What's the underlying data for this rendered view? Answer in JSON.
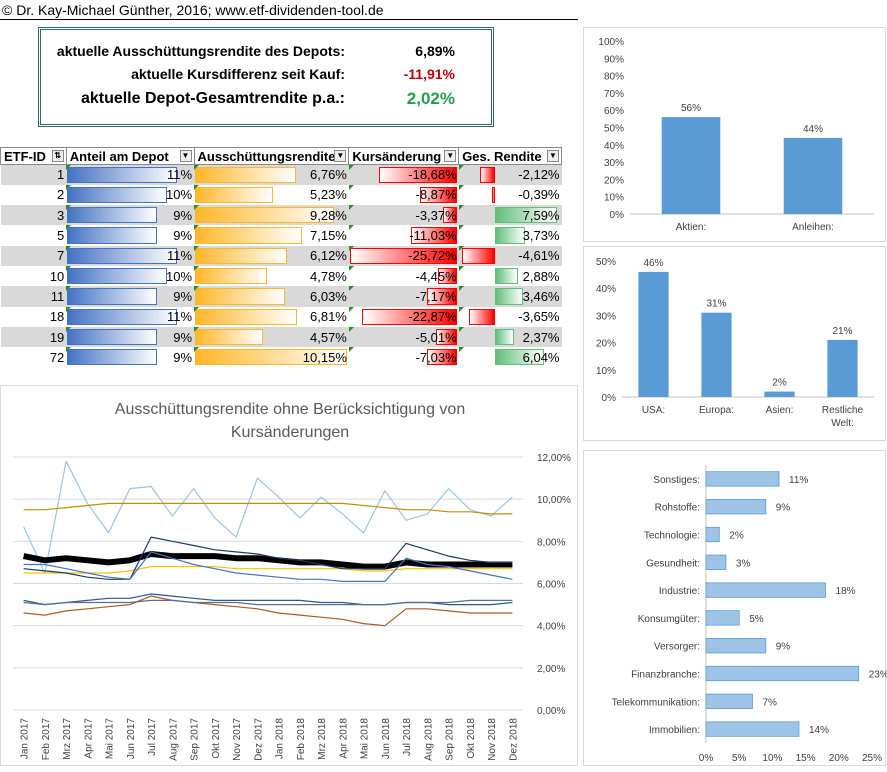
{
  "copyright": "© Dr. Kay-Michael Günther, 2016; www.etf-dividenden-tool.de",
  "kpis": {
    "yield_label": "aktuelle Ausschüttungsrendite des Depots:",
    "yield_value": "6,89%",
    "diff_label": "aktuelle Kursdifferenz seit Kauf:",
    "diff_value": "-11,91%",
    "total_label": "aktuelle Depot-Gesamtrendite p.a.:",
    "total_value": "2,02%",
    "colors": {
      "negative": "#c00000",
      "positive": "#21a04a"
    }
  },
  "table": {
    "headers": [
      "ETF-ID",
      "Anteil am Depot",
      "Ausschüttungsrendite",
      "Kursänderung",
      "Ges. Rendite"
    ],
    "rows": [
      {
        "id": "1",
        "share": "11%",
        "share_v": 11,
        "yield": "6,76%",
        "yield_v": 6.76,
        "change": "-18,68%",
        "change_v": -18.68,
        "total": "-2,12%",
        "total_v": -2.12
      },
      {
        "id": "2",
        "share": "10%",
        "share_v": 10,
        "yield": "5,23%",
        "yield_v": 5.23,
        "change": "-8,87%",
        "change_v": -8.87,
        "total": "-0,39%",
        "total_v": -0.39
      },
      {
        "id": "3",
        "share": "9%",
        "share_v": 9,
        "yield": "9,28%",
        "yield_v": 9.28,
        "change": "-3,37%",
        "change_v": -3.37,
        "total": "7,59%",
        "total_v": 7.59
      },
      {
        "id": "5",
        "share": "9%",
        "share_v": 9,
        "yield": "7,15%",
        "yield_v": 7.15,
        "change": "-11,03%",
        "change_v": -11.03,
        "total": "3,73%",
        "total_v": 3.73
      },
      {
        "id": "7",
        "share": "11%",
        "share_v": 11,
        "yield": "6,12%",
        "yield_v": 6.12,
        "change": "-25,72%",
        "change_v": -25.72,
        "total": "-4,61%",
        "total_v": -4.61
      },
      {
        "id": "10",
        "share": "10%",
        "share_v": 10,
        "yield": "4,78%",
        "yield_v": 4.78,
        "change": "-4,45%",
        "change_v": -4.45,
        "total": "2,88%",
        "total_v": 2.88
      },
      {
        "id": "11",
        "share": "9%",
        "share_v": 9,
        "yield": "6,03%",
        "yield_v": 6.03,
        "change": "-7,17%",
        "change_v": -7.17,
        "total": "3,46%",
        "total_v": 3.46
      },
      {
        "id": "18",
        "share": "11%",
        "share_v": 11,
        "yield": "6,81%",
        "yield_v": 6.81,
        "change": "-22,87%",
        "change_v": -22.87,
        "total": "-3,65%",
        "total_v": -3.65
      },
      {
        "id": "19",
        "share": "9%",
        "share_v": 9,
        "yield": "4,57%",
        "yield_v": 4.57,
        "change": "-5,01%",
        "change_v": -5.01,
        "total": "2,37%",
        "total_v": 2.37
      },
      {
        "id": "72",
        "share": "9%",
        "share_v": 9,
        "yield": "10,15%",
        "yield_v": 10.15,
        "change": "-7,03%",
        "change_v": -7.03,
        "total": "6,04%",
        "total_v": 6.04
      }
    ]
  },
  "chart_data": [
    {
      "type": "bar",
      "categories": [
        "Aktien:",
        "Anleihen:"
      ],
      "values": [
        56,
        44
      ],
      "labels": [
        "56%",
        "44%"
      ],
      "yticks": [
        "0%",
        "10%",
        "20%",
        "30%",
        "40%",
        "50%",
        "60%",
        "70%",
        "80%",
        "90%",
        "100%"
      ],
      "ylim": [
        0,
        100
      ],
      "color": "#5b9bd5"
    },
    {
      "type": "bar",
      "categories": [
        "USA:",
        "Europa:",
        "Asien:",
        "Restliche Welt:"
      ],
      "values": [
        46,
        31,
        2,
        21
      ],
      "labels": [
        "46%",
        "31%",
        "2%",
        "21%"
      ],
      "yticks": [
        "0%",
        "10%",
        "20%",
        "30%",
        "40%",
        "50%"
      ],
      "ylim": [
        0,
        50
      ],
      "color": "#5b9bd5"
    },
    {
      "type": "bar",
      "orientation": "horizontal",
      "categories": [
        "Sonstiges:",
        "Rohstoffe:",
        "Technologie:",
        "Gesundheit:",
        "Industrie:",
        "Konsumgüter:",
        "Versorger:",
        "Finanzbranche:",
        "Telekommunikation:",
        "Immobilien:"
      ],
      "values": [
        11,
        9,
        2,
        3,
        18,
        5,
        9,
        23,
        7,
        14
      ],
      "labels": [
        "11%",
        "9%",
        "2%",
        "3%",
        "18%",
        "5%",
        "9%",
        "23%",
        "7%",
        "14%"
      ],
      "xticks": [
        "0%",
        "5%",
        "10%",
        "15%",
        "20%",
        "25%"
      ],
      "xlim": [
        0,
        25
      ],
      "color": "#9dc3e6"
    },
    {
      "type": "line",
      "title": "Ausschüttungsrendite ohne Berücksichtigung von Kursänderungen",
      "x": [
        "Jan 2017",
        "Feb 2017",
        "Mrz 2017",
        "Apr 2017",
        "Mai 2017",
        "Jun 2017",
        "Jul 2017",
        "Aug 2017",
        "Sep 2017",
        "Okt 2017",
        "Nov 2017",
        "Dez 2017",
        "Jan 2018",
        "Feb 2018",
        "Mrz 2018",
        "Apr 2018",
        "Mai 2018",
        "Jun 2018",
        "Jul 2018",
        "Aug 2018",
        "Sep 2018",
        "Okt 2018",
        "Nov 2018",
        "Dez 2018"
      ],
      "yticks": [
        "0,00%",
        "2,00%",
        "4,00%",
        "6,00%",
        "8,00%",
        "10,00%",
        "12,00%"
      ],
      "ylim": [
        0,
        12
      ],
      "series": [
        {
          "color": "#9dc3e6",
          "width": 1.2,
          "values": [
            8.7,
            6.5,
            11.8,
            9.8,
            8.4,
            10.5,
            10.6,
            9.2,
            10.5,
            9.1,
            8.2,
            11.0,
            10.1,
            9.1,
            10.1,
            9.3,
            8.4,
            10.4,
            9.0,
            9.3,
            10.5,
            9.5,
            9.2,
            10.1
          ]
        },
        {
          "color": "#bf9000",
          "width": 1.2,
          "values": [
            9.5,
            9.5,
            9.6,
            9.7,
            9.8,
            9.8,
            9.8,
            9.8,
            9.8,
            9.8,
            9.8,
            9.8,
            9.8,
            9.8,
            9.8,
            9.8,
            9.7,
            9.6,
            9.5,
            9.5,
            9.4,
            9.4,
            9.3,
            9.3
          ]
        },
        {
          "color": "#000000",
          "width": 6,
          "values": [
            7.3,
            7.1,
            7.2,
            7.1,
            7.0,
            7.1,
            7.4,
            7.3,
            7.3,
            7.3,
            7.2,
            7.2,
            7.1,
            7.0,
            7.0,
            6.9,
            6.8,
            6.8,
            7.0,
            6.9,
            6.9,
            6.9,
            6.9,
            6.9
          ]
        },
        {
          "color": "#ffc000",
          "width": 1.2,
          "values": [
            6.5,
            6.5,
            6.5,
            6.5,
            6.5,
            6.6,
            6.8,
            6.8,
            6.8,
            6.8,
            6.7,
            6.7,
            6.7,
            6.7,
            6.7,
            6.7,
            6.6,
            6.6,
            6.7,
            6.7,
            6.7,
            6.7,
            6.7,
            6.7
          ]
        },
        {
          "color": "#203864",
          "width": 1.2,
          "values": [
            6.7,
            6.6,
            6.5,
            6.3,
            6.2,
            6.2,
            8.2,
            8.0,
            7.8,
            7.6,
            7.5,
            7.4,
            7.2,
            7.1,
            6.9,
            6.7,
            6.7,
            6.7,
            7.9,
            7.6,
            7.3,
            7.1,
            7.0,
            7.0
          ]
        },
        {
          "color": "#4472c4",
          "width": 1.2,
          "values": [
            6.9,
            6.9,
            6.7,
            6.5,
            6.3,
            6.2,
            7.5,
            7.2,
            6.9,
            6.7,
            6.5,
            6.4,
            6.3,
            6.2,
            6.2,
            6.1,
            6.1,
            6.1,
            7.2,
            6.9,
            6.8,
            6.6,
            6.4,
            6.2
          ]
        },
        {
          "color": "#2f5597",
          "width": 1.2,
          "values": [
            5.2,
            5.0,
            5.1,
            5.2,
            5.3,
            5.3,
            5.5,
            5.4,
            5.3,
            5.2,
            5.2,
            5.2,
            5.2,
            5.2,
            5.1,
            5.1,
            5.0,
            5.0,
            5.1,
            5.1,
            5.0,
            5.0,
            5.0,
            5.1
          ]
        },
        {
          "color": "#ad5a1f",
          "width": 1.2,
          "values": [
            4.6,
            4.5,
            4.7,
            4.8,
            4.9,
            5.0,
            5.4,
            5.2,
            5.1,
            5.0,
            4.9,
            4.8,
            4.6,
            4.5,
            4.4,
            4.3,
            4.1,
            4.0,
            4.8,
            4.8,
            4.7,
            4.6,
            4.6,
            4.6
          ]
        },
        {
          "color": "#5a6e8c",
          "width": 1.2,
          "values": [
            5.1,
            5.0,
            5.1,
            5.1,
            5.1,
            5.1,
            5.2,
            5.2,
            5.1,
            5.1,
            5.1,
            5.0,
            5.0,
            5.0,
            5.0,
            5.0,
            5.0,
            5.0,
            5.1,
            5.1,
            5.1,
            5.2,
            5.2,
            5.2
          ]
        }
      ]
    }
  ]
}
